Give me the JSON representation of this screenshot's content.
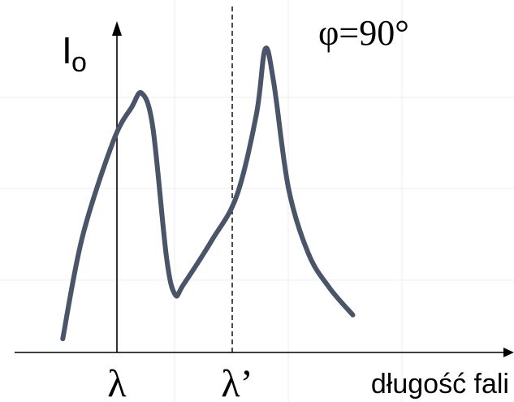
{
  "chart_data": {
    "type": "line",
    "title": "",
    "ylabel_main": "I",
    "ylabel_sub": "o",
    "xlabel": "długość fali",
    "annotation": "φ=90°",
    "ticks": [
      {
        "id": "lambda",
        "label": "λ",
        "x": 1.0
      },
      {
        "id": "lambda-prime",
        "label": "λ’",
        "x": 2.0
      }
    ],
    "xlim": [
      0,
      4.0
    ],
    "ylim": [
      0,
      1.0
    ],
    "grid": false,
    "series": [
      {
        "color": "#4a5569",
        "points": [
          [
            0.39,
            0.04
          ],
          [
            0.55,
            0.34
          ],
          [
            0.8,
            0.62
          ],
          [
            0.95,
            0.72
          ],
          [
            1.03,
            0.76
          ],
          [
            1.12,
            0.66
          ],
          [
            1.23,
            0.28
          ],
          [
            1.3,
            0.17
          ],
          [
            1.37,
            0.2
          ],
          [
            1.6,
            0.33
          ],
          [
            1.8,
            0.46
          ],
          [
            1.96,
            0.7
          ],
          [
            2.03,
            0.89
          ],
          [
            2.1,
            0.79
          ],
          [
            2.22,
            0.48
          ],
          [
            2.38,
            0.29
          ],
          [
            2.55,
            0.19
          ],
          [
            2.74,
            0.11
          ]
        ]
      }
    ]
  }
}
